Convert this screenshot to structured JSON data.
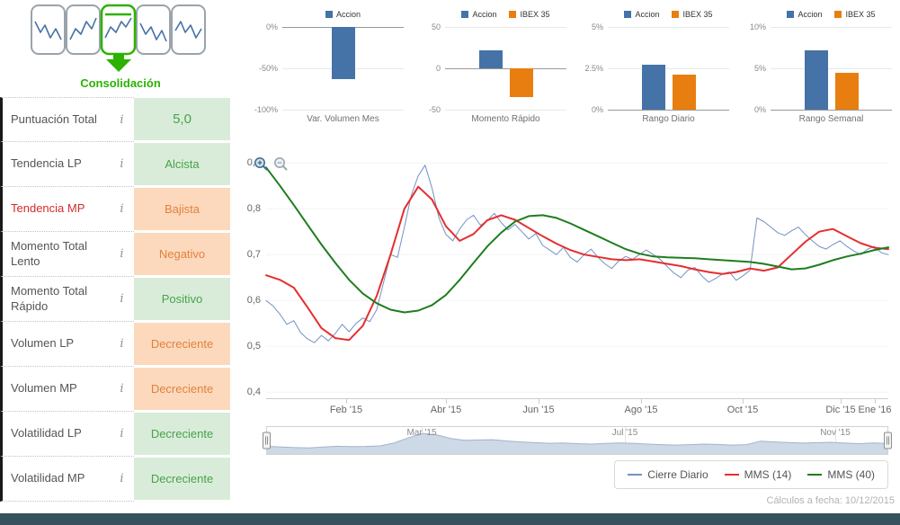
{
  "phase": {
    "label": "Consolidación"
  },
  "sidebar": {
    "info_icon": "i",
    "rows": [
      {
        "label": "Puntuación Total",
        "value": "5,0",
        "tone": "green",
        "emphasis": true
      },
      {
        "label": "Tendencia LP",
        "value": "Alcista",
        "tone": "green"
      },
      {
        "label": "Tendencia MP",
        "value": "Bajista",
        "tone": "orange",
        "label_red": true
      },
      {
        "label": "Momento Total Lento",
        "value": "Negativo",
        "tone": "orange"
      },
      {
        "label": "Momento Total Rápido",
        "value": "Positivo",
        "tone": "green"
      },
      {
        "label": "Volumen LP",
        "value": "Decreciente",
        "tone": "orange"
      },
      {
        "label": "Volumen MP",
        "value": "Decreciente",
        "tone": "orange"
      },
      {
        "label": "Volatilidad LP",
        "value": "Decreciente",
        "tone": "green"
      },
      {
        "label": "Volatilidad MP",
        "value": "Decreciente",
        "tone": "green"
      }
    ]
  },
  "footer": {
    "text": "Cálculos a fecha: 10/12/2015"
  },
  "colors": {
    "accion": "#4572a7",
    "ibex": "#e87e10",
    "cierre": "#7292c4",
    "mms14": "#e62e2e",
    "mms40": "#1e7d1e",
    "phase_green": "#2cb200"
  },
  "chart_data": [
    {
      "type": "bar",
      "title": "Var. Volumen Mes",
      "ylim": [
        -100,
        0
      ],
      "yticks": [
        {
          "v": 0,
          "label": "0%"
        },
        {
          "v": -50,
          "label": "-50%"
        },
        {
          "v": -100,
          "label": "-100%"
        }
      ],
      "series": [
        {
          "name": "Accion",
          "value": -63
        }
      ]
    },
    {
      "type": "bar",
      "title": "Momento Rápido",
      "ylim": [
        -50,
        50
      ],
      "yticks": [
        {
          "v": 50,
          "label": "50"
        },
        {
          "v": 0,
          "label": "0"
        },
        {
          "v": -50,
          "label": "-50"
        }
      ],
      "series": [
        {
          "name": "Accion",
          "value": 22
        },
        {
          "name": "IBEX 35",
          "value": -35
        }
      ]
    },
    {
      "type": "bar",
      "title": "Rango Diario",
      "ylim": [
        0,
        5
      ],
      "yticks": [
        {
          "v": 5,
          "label": "5%"
        },
        {
          "v": 2.5,
          "label": "2.5%"
        },
        {
          "v": 0,
          "label": "0%"
        }
      ],
      "series": [
        {
          "name": "Accion",
          "value": 2.7
        },
        {
          "name": "IBEX 35",
          "value": 2.1
        }
      ]
    },
    {
      "type": "bar",
      "title": "Rango Semanal",
      "ylim": [
        0,
        10
      ],
      "yticks": [
        {
          "v": 10,
          "label": "10%"
        },
        {
          "v": 5,
          "label": "5%"
        },
        {
          "v": 0,
          "label": "0%"
        }
      ],
      "series": [
        {
          "name": "Accion",
          "value": 7.2
        },
        {
          "name": "IBEX 35",
          "value": 4.5
        }
      ]
    },
    {
      "type": "line",
      "title": "Cotización diaria con medias móviles",
      "ylim": [
        0.385,
        0.918
      ],
      "yticks": [
        {
          "v": 0.9,
          "label": "0,9"
        },
        {
          "v": 0.8,
          "label": "0,8"
        },
        {
          "v": 0.7,
          "label": "0,7"
        },
        {
          "v": 0.6,
          "label": "0,6"
        },
        {
          "v": 0.5,
          "label": "0,5"
        },
        {
          "v": 0.4,
          "label": "0,4"
        }
      ],
      "xticks": [
        {
          "f": 0.129,
          "label": "Feb '15"
        },
        {
          "f": 0.289,
          "label": "Abr '15"
        },
        {
          "f": 0.438,
          "label": "Jun '15"
        },
        {
          "f": 0.603,
          "label": "Ago '15"
        },
        {
          "f": 0.766,
          "label": "Oct '15"
        },
        {
          "f": 0.923,
          "label": "Dic '15"
        },
        {
          "f": 0.978,
          "label": "Ene '16"
        }
      ],
      "series": [
        {
          "name": "Cierre Diario",
          "color_key": "cierre",
          "width": 1,
          "values": [
            0.6,
            0.588,
            0.57,
            0.548,
            0.556,
            0.53,
            0.516,
            0.508,
            0.524,
            0.512,
            0.528,
            0.548,
            0.532,
            0.55,
            0.562,
            0.554,
            0.58,
            0.64,
            0.7,
            0.694,
            0.76,
            0.83,
            0.872,
            0.895,
            0.845,
            0.78,
            0.744,
            0.73,
            0.756,
            0.776,
            0.786,
            0.764,
            0.774,
            0.79,
            0.77,
            0.754,
            0.766,
            0.75,
            0.734,
            0.746,
            0.72,
            0.71,
            0.7,
            0.716,
            0.694,
            0.684,
            0.7,
            0.712,
            0.694,
            0.68,
            0.67,
            0.686,
            0.696,
            0.69,
            0.7,
            0.71,
            0.7,
            0.69,
            0.674,
            0.66,
            0.65,
            0.666,
            0.672,
            0.654,
            0.64,
            0.648,
            0.658,
            0.662,
            0.644,
            0.654,
            0.666,
            0.78,
            0.772,
            0.76,
            0.748,
            0.742,
            0.752,
            0.76,
            0.744,
            0.73,
            0.718,
            0.712,
            0.722,
            0.73,
            0.718,
            0.708,
            0.7,
            0.712,
            0.718,
            0.704,
            0.7
          ]
        },
        {
          "name": "MMS (14)",
          "color_key": "mms14",
          "width": 2,
          "values": [
            0.655,
            0.645,
            0.628,
            0.585,
            0.54,
            0.518,
            0.514,
            0.545,
            0.61,
            0.7,
            0.8,
            0.848,
            0.82,
            0.762,
            0.73,
            0.745,
            0.775,
            0.786,
            0.776,
            0.758,
            0.74,
            0.724,
            0.71,
            0.7,
            0.695,
            0.69,
            0.688,
            0.69,
            0.685,
            0.68,
            0.675,
            0.668,
            0.662,
            0.658,
            0.662,
            0.67,
            0.665,
            0.672,
            0.7,
            0.728,
            0.75,
            0.756,
            0.74,
            0.725,
            0.715,
            0.712
          ]
        },
        {
          "name": "MMS (40)",
          "color_key": "mms40",
          "width": 2,
          "values": [
            0.89,
            0.85,
            0.808,
            0.765,
            0.722,
            0.682,
            0.645,
            0.615,
            0.594,
            0.58,
            0.574,
            0.578,
            0.59,
            0.612,
            0.645,
            0.682,
            0.718,
            0.748,
            0.772,
            0.784,
            0.786,
            0.78,
            0.768,
            0.754,
            0.74,
            0.726,
            0.712,
            0.702,
            0.696,
            0.694,
            0.693,
            0.692,
            0.69,
            0.688,
            0.686,
            0.684,
            0.68,
            0.674,
            0.668,
            0.67,
            0.678,
            0.688,
            0.696,
            0.702,
            0.71,
            0.716
          ]
        }
      ]
    },
    {
      "type": "area",
      "name": "navigator",
      "labels": [
        {
          "f": 0.249,
          "label": "Mar '15"
        },
        {
          "f": 0.577,
          "label": "Jul '15"
        },
        {
          "f": 0.916,
          "label": "Nov '15"
        }
      ],
      "values": [
        0.3,
        0.26,
        0.23,
        0.22,
        0.26,
        0.3,
        0.28,
        0.29,
        0.32,
        0.46,
        0.72,
        0.95,
        0.88,
        0.7,
        0.6,
        0.62,
        0.63,
        0.57,
        0.52,
        0.48,
        0.45,
        0.47,
        0.43,
        0.41,
        0.44,
        0.47,
        0.45,
        0.41,
        0.38,
        0.36,
        0.38,
        0.41,
        0.39,
        0.36,
        0.38,
        0.56,
        0.52,
        0.49,
        0.46,
        0.48,
        0.5,
        0.46,
        0.43,
        0.47,
        0.44
      ]
    }
  ]
}
